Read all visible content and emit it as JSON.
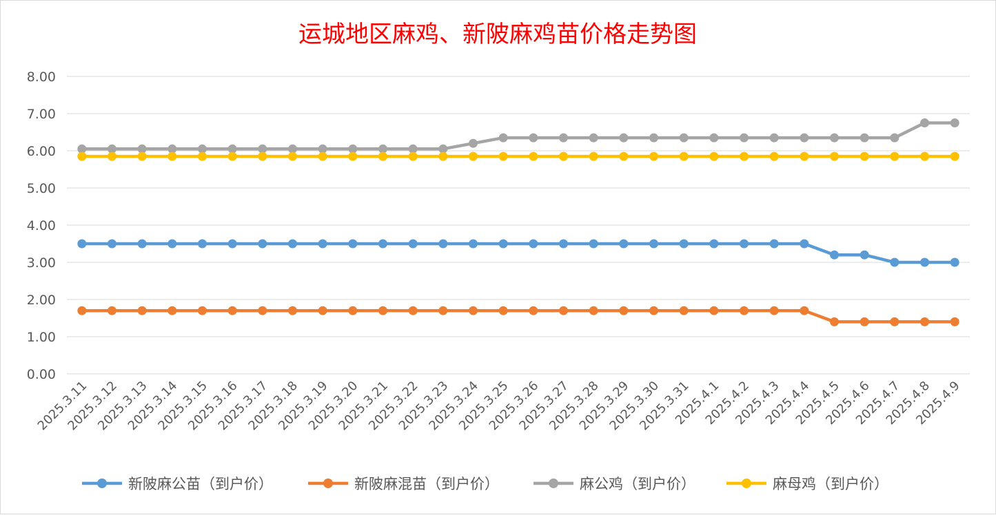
{
  "chart_data": {
    "type": "line",
    "title": "运城地区麻鸡、新陂麻鸡苗价格走势图",
    "title_color": "#ff0000",
    "xlabel": "",
    "ylabel": "",
    "ylim": [
      0,
      8
    ],
    "y_ticks": [
      "0.00",
      "1.00",
      "2.00",
      "3.00",
      "4.00",
      "5.00",
      "6.00",
      "7.00",
      "8.00"
    ],
    "grid": true,
    "legend_position": "bottom",
    "categories": [
      "2025.3.11",
      "2025.3.12",
      "2025.3.13",
      "2025.3.14",
      "2025.3.15",
      "2025.3.16",
      "2025.3.17",
      "2025.3.18",
      "2025.3.19",
      "2025.3.20",
      "2025.3.21",
      "2025.3.22",
      "2025.3.23",
      "2025.3.24",
      "2025.3.25",
      "2025.3.26",
      "2025.3.27",
      "2025.3.28",
      "2025.3.29",
      "2025.3.30",
      "2025.3.31",
      "2025.4.1",
      "2025.4.2",
      "2025.4.3",
      "2025.4.4",
      "2025.4.5",
      "2025.4.6",
      "2025.4.7",
      "2025.4.8",
      "2025.4.9"
    ],
    "series": [
      {
        "name": "新陂麻公苗（到户价）",
        "color": "#5b9bd5",
        "values": [
          3.5,
          3.5,
          3.5,
          3.5,
          3.5,
          3.5,
          3.5,
          3.5,
          3.5,
          3.5,
          3.5,
          3.5,
          3.5,
          3.5,
          3.5,
          3.5,
          3.5,
          3.5,
          3.5,
          3.5,
          3.5,
          3.5,
          3.5,
          3.5,
          3.5,
          3.2,
          3.2,
          3.0,
          3.0,
          3.0
        ]
      },
      {
        "name": "新陂麻混苗（到户价）",
        "color": "#ed7d31",
        "values": [
          1.7,
          1.7,
          1.7,
          1.7,
          1.7,
          1.7,
          1.7,
          1.7,
          1.7,
          1.7,
          1.7,
          1.7,
          1.7,
          1.7,
          1.7,
          1.7,
          1.7,
          1.7,
          1.7,
          1.7,
          1.7,
          1.7,
          1.7,
          1.7,
          1.7,
          1.4,
          1.4,
          1.4,
          1.4,
          1.4
        ]
      },
      {
        "name": "麻公鸡（到户价）",
        "color": "#a5a5a5",
        "values": [
          6.05,
          6.05,
          6.05,
          6.05,
          6.05,
          6.05,
          6.05,
          6.05,
          6.05,
          6.05,
          6.05,
          6.05,
          6.05,
          6.2,
          6.35,
          6.35,
          6.35,
          6.35,
          6.35,
          6.35,
          6.35,
          6.35,
          6.35,
          6.35,
          6.35,
          6.35,
          6.35,
          6.35,
          6.75,
          6.75
        ]
      },
      {
        "name": "麻母鸡（到户价）",
        "color": "#ffc000",
        "values": [
          5.85,
          5.85,
          5.85,
          5.85,
          5.85,
          5.85,
          5.85,
          5.85,
          5.85,
          5.85,
          5.85,
          5.85,
          5.85,
          5.85,
          5.85,
          5.85,
          5.85,
          5.85,
          5.85,
          5.85,
          5.85,
          5.85,
          5.85,
          5.85,
          5.85,
          5.85,
          5.85,
          5.85,
          5.85,
          5.85
        ]
      }
    ]
  }
}
